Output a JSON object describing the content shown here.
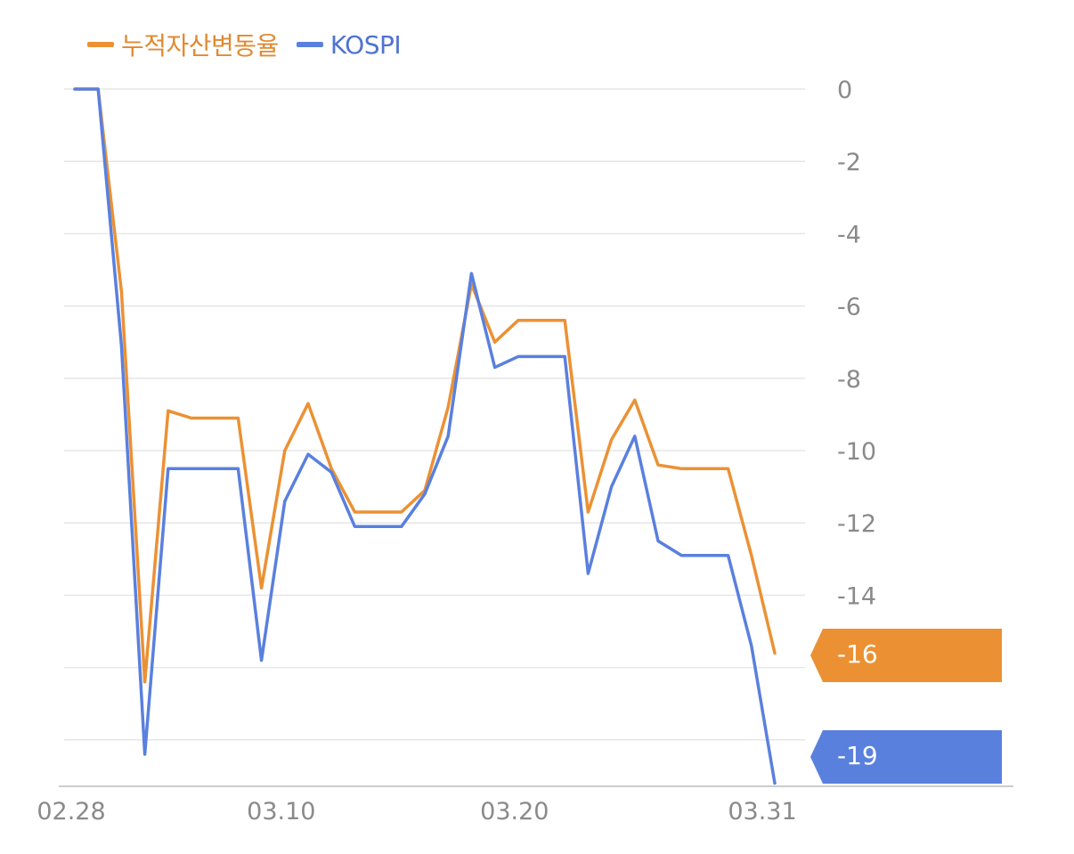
{
  "colors": {
    "cumulative": "#EB9134",
    "kospi": "#5A80DE",
    "grid": "#E6E6E6",
    "axis": "#CCCCCC",
    "tick": "#8A8A8A"
  },
  "chart_data": {
    "type": "line",
    "x_ticks": [
      "02.28",
      "03.10",
      "03.20",
      "03.31"
    ],
    "y_ticks": [
      "0",
      "-2",
      "-4",
      "-6",
      "-8",
      "-10",
      "-12",
      "-14"
    ],
    "ylim": [
      -19.3,
      0
    ],
    "grid": true,
    "legend_position": "top-left",
    "y_axis_side": "right",
    "series": [
      {
        "name": "누적자산변동율",
        "color": "#EB9134",
        "values": [
          0,
          0,
          -5.6,
          -16.4,
          -8.9,
          -9.1,
          -9.1,
          -9.1,
          -13.8,
          -10.0,
          -8.7,
          -10.5,
          -11.7,
          -11.7,
          -11.7,
          -11.1,
          -8.8,
          -5.4,
          -7.0,
          -6.4,
          -6.4,
          -6.4,
          -11.7,
          -9.7,
          -8.6,
          -10.4,
          -10.5,
          -10.5,
          -10.5,
          -12.9,
          -15.6
        ],
        "end_label": "-16"
      },
      {
        "name": "KOSPI",
        "color": "#5A80DE",
        "values": [
          0,
          0,
          -7.1,
          -18.4,
          -10.5,
          -10.5,
          -10.5,
          -10.5,
          -15.8,
          -11.4,
          -10.1,
          -10.6,
          -12.1,
          -12.1,
          -12.1,
          -11.2,
          -9.6,
          -5.1,
          -7.7,
          -7.4,
          -7.4,
          -7.4,
          -13.4,
          -11.0,
          -9.6,
          -12.5,
          -12.9,
          -12.9,
          -12.9,
          -15.4,
          -19.2
        ],
        "end_label": "-19"
      }
    ]
  }
}
